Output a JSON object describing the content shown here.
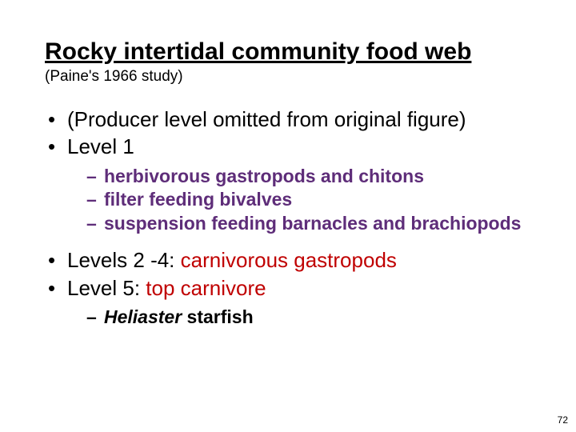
{
  "title": "Rocky intertidal community food web",
  "subtitle": "(Paine's 1966 study)",
  "bullets": {
    "b1": "(Producer level omitted from original figure)",
    "b2": "Level 1",
    "b2_subs": {
      "s1": "herbivorous gastropods and chitons",
      "s2": "filter feeding bivalves",
      "s3": "suspension feeding barnacles and brachiopods"
    },
    "b3_prefix": "Levels 2 -4: ",
    "b3_colored": "carnivorous gastropods",
    "b4_prefix": "Level 5: ",
    "b4_colored": "top carnivore",
    "b4_subs": {
      "s1_italic": "Heliaster",
      "s1_rest": " starfish"
    }
  },
  "page_number": "72",
  "colors": {
    "purple": "#5e2d79",
    "red": "#c00000",
    "text": "#000000",
    "background": "#ffffff"
  },
  "typography": {
    "title_fontsize": 30,
    "subtitle_fontsize": 19,
    "bullet_fontsize": 26,
    "sub_fontsize": 23,
    "pagenum_fontsize": 12,
    "font_family": "Arial"
  }
}
